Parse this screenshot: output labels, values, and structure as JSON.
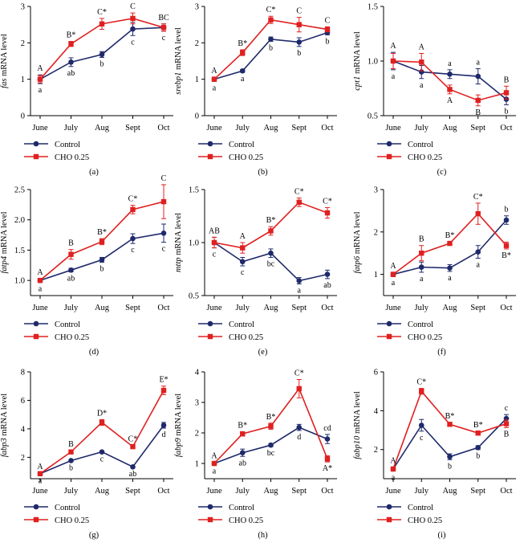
{
  "colors": {
    "control": "#1f2a6b",
    "cho": "#e02020"
  },
  "legend": {
    "control": "Control",
    "cho": "CHO 0.25"
  },
  "chart_data": [
    {
      "type": "line",
      "label": "(a)",
      "gene": "fas",
      "ylabel_suffix": " mRNA level",
      "categories": [
        "June",
        "July",
        "Aug",
        "Sept",
        "Oct"
      ],
      "ylim": [
        0,
        3
      ],
      "yticks": [
        0,
        1,
        2,
        3
      ],
      "ytick_labels": [
        "0",
        "1",
        "2",
        "3"
      ],
      "series": [
        {
          "name": "Control",
          "values": [
            1.0,
            1.47,
            1.68,
            2.38,
            2.42
          ],
          "errors": [
            0.12,
            0.12,
            0.08,
            0.18,
            0.1
          ],
          "annotations": [
            "a",
            "ab",
            "b",
            "c",
            "c"
          ]
        },
        {
          "name": "CHO 0.25",
          "values": [
            1.0,
            1.97,
            2.52,
            2.67,
            2.42
          ],
          "errors": [
            0.1,
            0.07,
            0.15,
            0.15,
            0.1
          ],
          "annotations": [
            "A",
            "B*",
            "C*",
            "C",
            "BC"
          ]
        }
      ]
    },
    {
      "type": "line",
      "label": "(b)",
      "gene": "srebp1",
      "ylabel_suffix": " mRNA level",
      "categories": [
        "June",
        "July",
        "Aug",
        "Sept",
        "Oct"
      ],
      "ylim": [
        0,
        3
      ],
      "yticks": [
        0,
        1,
        2,
        3
      ],
      "ytick_labels": [
        "0",
        "1",
        "2",
        "3"
      ],
      "series": [
        {
          "name": "Control",
          "values": [
            1.0,
            1.23,
            2.1,
            2.02,
            2.28
          ],
          "errors": [
            0.05,
            0.04,
            0.06,
            0.12,
            0.06
          ],
          "annotations": [
            "a",
            "a",
            "b",
            "b",
            "b"
          ]
        },
        {
          "name": "CHO 0.25",
          "values": [
            1.0,
            1.73,
            2.63,
            2.5,
            2.37
          ],
          "errors": [
            0.06,
            0.08,
            0.1,
            0.2,
            0.07
          ],
          "annotations": [
            "A",
            "B*",
            "C*",
            "C",
            "C"
          ]
        }
      ]
    },
    {
      "type": "line",
      "label": "(c)",
      "gene": "cpt1",
      "ylabel_suffix": " mRNA level",
      "categories": [
        "June",
        "July",
        "Aug",
        "Sept",
        "Oct"
      ],
      "ylim": [
        0.5,
        1.5
      ],
      "yticks": [
        0.5,
        1.0,
        1.5
      ],
      "ytick_labels": [
        "0.5",
        "1.0",
        "1.5"
      ],
      "series": [
        {
          "name": "Control",
          "values": [
            1.0,
            0.9,
            0.88,
            0.86,
            0.65
          ],
          "errors": [
            0.08,
            0.06,
            0.04,
            0.07,
            0.05
          ],
          "annotations": [
            "a",
            "a",
            "a",
            "a",
            "b"
          ]
        },
        {
          "name": "CHO 0.25",
          "values": [
            1.0,
            0.99,
            0.74,
            0.64,
            0.71
          ],
          "errors": [
            0.07,
            0.08,
            0.04,
            0.05,
            0.06
          ],
          "annotations": [
            "A",
            "A",
            "A",
            "B",
            "B"
          ]
        }
      ]
    },
    {
      "type": "line",
      "label": "(d)",
      "gene": "fatp4",
      "ylabel_suffix": " mRNA level",
      "categories": [
        "June",
        "July",
        "Aug",
        "Sept",
        "Oct"
      ],
      "ylim": [
        0.75,
        2.5
      ],
      "yticks": [
        1.0,
        1.5,
        2.0,
        2.5
      ],
      "ytick_labels": [
        "1.0",
        "1.5",
        "2.0",
        "2.5"
      ],
      "series": [
        {
          "name": "Control",
          "values": [
            1.0,
            1.17,
            1.34,
            1.69,
            1.78
          ],
          "errors": [
            0.03,
            0.03,
            0.04,
            0.08,
            0.15
          ],
          "annotations": [
            "a",
            "ab",
            "b",
            "c",
            "c"
          ]
        },
        {
          "name": "CHO 0.25",
          "values": [
            1.0,
            1.43,
            1.64,
            2.17,
            2.3
          ],
          "errors": [
            0.03,
            0.08,
            0.05,
            0.07,
            0.28
          ],
          "annotations": [
            "A",
            "B",
            "B*",
            "C*",
            "C"
          ]
        }
      ]
    },
    {
      "type": "line",
      "label": "(e)",
      "gene": "mttp",
      "ylabel_suffix": " mRNA level",
      "categories": [
        "June",
        "July",
        "Aug",
        "Sept",
        "Oct"
      ],
      "ylim": [
        0.5,
        1.5
      ],
      "yticks": [
        0.5,
        1.0,
        1.5
      ],
      "ytick_labels": [
        "0.5",
        "1.0",
        "1.5"
      ],
      "series": [
        {
          "name": "Control",
          "values": [
            1.0,
            0.82,
            0.9,
            0.64,
            0.7
          ],
          "errors": [
            0.05,
            0.04,
            0.04,
            0.03,
            0.04
          ],
          "annotations": [
            "c",
            "c",
            "bc",
            "a",
            "ab"
          ]
        },
        {
          "name": "CHO 0.25",
          "values": [
            1.0,
            0.95,
            1.11,
            1.38,
            1.28
          ],
          "errors": [
            0.05,
            0.05,
            0.04,
            0.04,
            0.05
          ],
          "annotations": [
            "AB",
            "A",
            "B*",
            "C*",
            "C*"
          ]
        }
      ]
    },
    {
      "type": "line",
      "label": "(f)",
      "gene": "fatp6",
      "ylabel_suffix": " mRNA level",
      "categories": [
        "June",
        "July",
        "Aug",
        "Sept",
        "Oct"
      ],
      "ylim": [
        0.5,
        3.0
      ],
      "yticks": [
        1,
        2,
        3
      ],
      "ytick_labels": [
        "1",
        "2",
        "3"
      ],
      "series": [
        {
          "name": "Control",
          "values": [
            1.0,
            1.17,
            1.15,
            1.53,
            2.28
          ],
          "errors": [
            0.05,
            0.12,
            0.08,
            0.15,
            0.1
          ],
          "annotations": [
            "a",
            "a",
            "a",
            "a",
            "b"
          ]
        },
        {
          "name": "CHO 0.25",
          "values": [
            1.0,
            1.5,
            1.73,
            2.43,
            1.68
          ],
          "errors": [
            0.05,
            0.18,
            0.04,
            0.25,
            0.08
          ],
          "annotations": [
            "A",
            "B",
            "B*",
            "C*",
            "B*"
          ]
        }
      ]
    },
    {
      "type": "line",
      "label": "(g)",
      "gene": "fabp3",
      "ylabel_suffix": " mRNA level",
      "categories": [
        "June",
        "July",
        "Aug",
        "Sept",
        "Oct"
      ],
      "ylim": [
        0.5,
        8
      ],
      "yticks": [
        2,
        4,
        6,
        8
      ],
      "ytick_labels": [
        "2",
        "4",
        "6",
        "8"
      ],
      "series": [
        {
          "name": "Control",
          "values": [
            0.85,
            1.77,
            2.38,
            1.33,
            4.25
          ],
          "errors": [
            0.05,
            0.05,
            0.06,
            0.05,
            0.2
          ],
          "annotations": [
            "a",
            "b",
            "c",
            "ab",
            "d"
          ]
        },
        {
          "name": "CHO 0.25",
          "values": [
            0.85,
            2.38,
            4.45,
            2.75,
            6.7
          ],
          "errors": [
            0.05,
            0.1,
            0.2,
            0.1,
            0.3
          ],
          "annotations": [
            "A",
            "B",
            "D*",
            "C*",
            "E*"
          ]
        }
      ]
    },
    {
      "type": "line",
      "label": "(h)",
      "gene": "fabp9",
      "ylabel_suffix": " mRNA level",
      "categories": [
        "June",
        "July",
        "Aug",
        "Sept",
        "Oct"
      ],
      "ylim": [
        0.5,
        4
      ],
      "yticks": [
        1,
        2,
        3,
        4
      ],
      "ytick_labels": [
        "1",
        "2",
        "3",
        "4"
      ],
      "series": [
        {
          "name": "Control",
          "values": [
            1.0,
            1.35,
            1.6,
            2.18,
            1.8
          ],
          "errors": [
            0.04,
            0.12,
            0.05,
            0.1,
            0.15
          ],
          "annotations": [
            "a",
            "ab",
            "bc",
            "d",
            "cd"
          ]
        },
        {
          "name": "CHO 0.25",
          "values": [
            1.0,
            1.97,
            2.22,
            3.45,
            1.15
          ],
          "errors": [
            0.04,
            0.07,
            0.1,
            0.3,
            0.1
          ],
          "annotations": [
            "A",
            "B*",
            "B*",
            "C*",
            "A*"
          ]
        }
      ]
    },
    {
      "type": "line",
      "label": "(i)",
      "gene": "fabp10",
      "ylabel_suffix": " mRNA level",
      "categories": [
        "June",
        "July",
        "Aug",
        "Sept",
        "Oct"
      ],
      "ylim": [
        0.5,
        6
      ],
      "yticks": [
        2,
        4,
        6
      ],
      "ytick_labels": [
        "2",
        "4",
        "6"
      ],
      "series": [
        {
          "name": "Control",
          "values": [
            1.0,
            3.25,
            1.63,
            2.1,
            3.6
          ],
          "errors": [
            0.1,
            0.3,
            0.15,
            0.1,
            0.2
          ],
          "annotations": [
            "a",
            "c",
            "b",
            "b",
            "c"
          ]
        },
        {
          "name": "CHO 0.25",
          "values": [
            1.0,
            5.0,
            3.3,
            2.85,
            3.33
          ],
          "errors": [
            0.1,
            0.15,
            0.1,
            0.1,
            0.2
          ],
          "annotations": [
            "A",
            "C*",
            "B*",
            "B*",
            "B"
          ]
        }
      ]
    }
  ]
}
